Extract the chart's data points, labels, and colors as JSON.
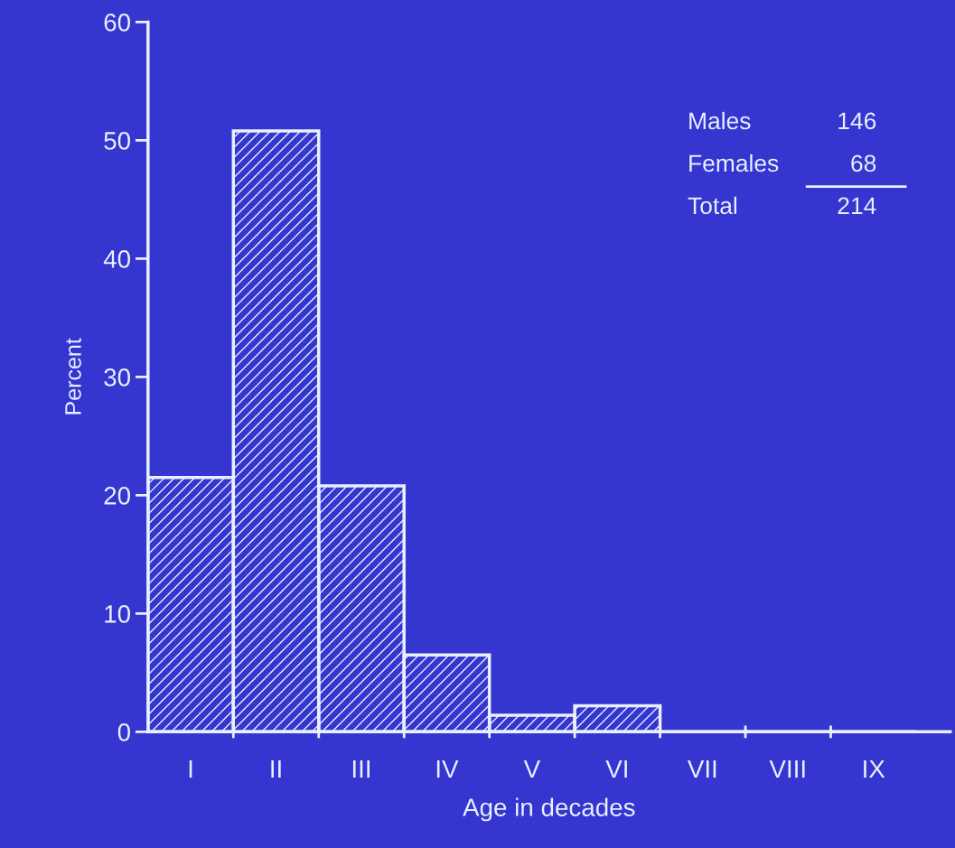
{
  "chart_data": {
    "type": "bar",
    "xlabel": "Age in decades",
    "ylabel": "Percent",
    "categories": [
      "I",
      "II",
      "III",
      "IV",
      "V",
      "VI",
      "VII",
      "VIII",
      "IX"
    ],
    "values": [
      21.5,
      50.8,
      20.8,
      6.5,
      1.4,
      2.2,
      0,
      0,
      0
    ],
    "color": "#e8f0ff",
    "ylim": [
      0,
      60
    ],
    "yticks": [
      0,
      10,
      20,
      30,
      40,
      50,
      60
    ],
    "annotations": [
      "Males 146",
      "Females 68",
      "Total 214"
    ],
    "grid": false,
    "legend": false
  }
}
